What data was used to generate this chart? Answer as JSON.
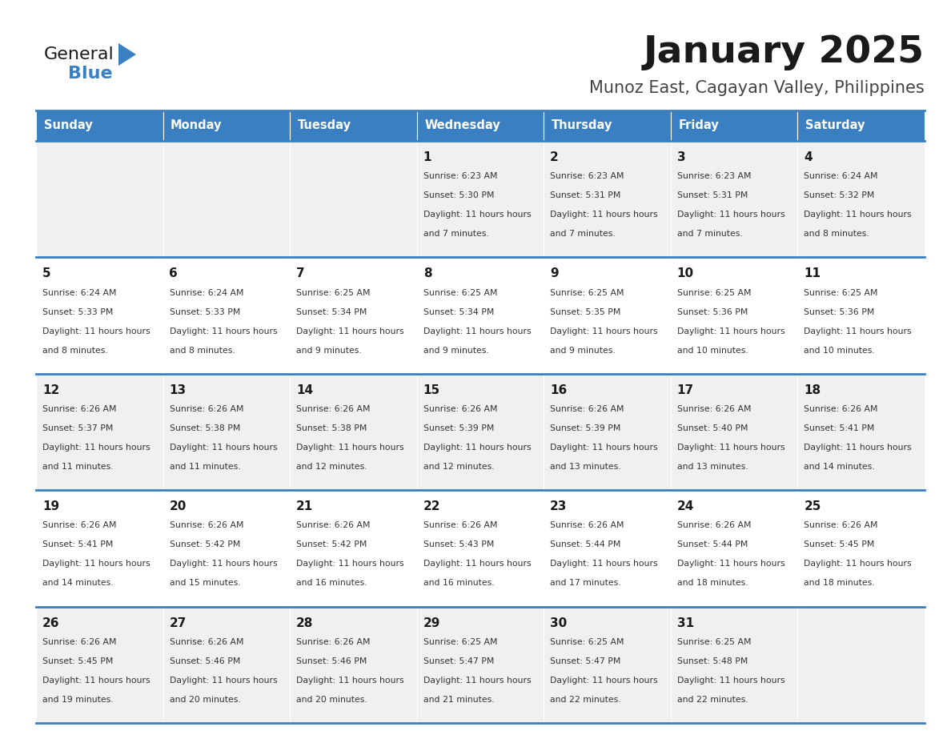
{
  "title": "January 2025",
  "subtitle": "Munoz East, Cagayan Valley, Philippines",
  "header_bg_color": "#3a7fc1",
  "header_text_color": "#ffffff",
  "row_bg_even": "#f0f0f0",
  "row_bg_odd": "#ffffff",
  "border_color": "#3a7fc1",
  "days_of_week": [
    "Sunday",
    "Monday",
    "Tuesday",
    "Wednesday",
    "Thursday",
    "Friday",
    "Saturday"
  ],
  "calendar_data": [
    [
      {
        "day": "",
        "sunrise": "",
        "sunset": "",
        "daylight": ""
      },
      {
        "day": "",
        "sunrise": "",
        "sunset": "",
        "daylight": ""
      },
      {
        "day": "",
        "sunrise": "",
        "sunset": "",
        "daylight": ""
      },
      {
        "day": "1",
        "sunrise": "6:23 AM",
        "sunset": "5:30 PM",
        "daylight": "11 hours and 7 minutes."
      },
      {
        "day": "2",
        "sunrise": "6:23 AM",
        "sunset": "5:31 PM",
        "daylight": "11 hours and 7 minutes."
      },
      {
        "day": "3",
        "sunrise": "6:23 AM",
        "sunset": "5:31 PM",
        "daylight": "11 hours and 7 minutes."
      },
      {
        "day": "4",
        "sunrise": "6:24 AM",
        "sunset": "5:32 PM",
        "daylight": "11 hours and 8 minutes."
      }
    ],
    [
      {
        "day": "5",
        "sunrise": "6:24 AM",
        "sunset": "5:33 PM",
        "daylight": "11 hours and 8 minutes."
      },
      {
        "day": "6",
        "sunrise": "6:24 AM",
        "sunset": "5:33 PM",
        "daylight": "11 hours and 8 minutes."
      },
      {
        "day": "7",
        "sunrise": "6:25 AM",
        "sunset": "5:34 PM",
        "daylight": "11 hours and 9 minutes."
      },
      {
        "day": "8",
        "sunrise": "6:25 AM",
        "sunset": "5:34 PM",
        "daylight": "11 hours and 9 minutes."
      },
      {
        "day": "9",
        "sunrise": "6:25 AM",
        "sunset": "5:35 PM",
        "daylight": "11 hours and 9 minutes."
      },
      {
        "day": "10",
        "sunrise": "6:25 AM",
        "sunset": "5:36 PM",
        "daylight": "11 hours and 10 minutes."
      },
      {
        "day": "11",
        "sunrise": "6:25 AM",
        "sunset": "5:36 PM",
        "daylight": "11 hours and 10 minutes."
      }
    ],
    [
      {
        "day": "12",
        "sunrise": "6:26 AM",
        "sunset": "5:37 PM",
        "daylight": "11 hours and 11 minutes."
      },
      {
        "day": "13",
        "sunrise": "6:26 AM",
        "sunset": "5:38 PM",
        "daylight": "11 hours and 11 minutes."
      },
      {
        "day": "14",
        "sunrise": "6:26 AM",
        "sunset": "5:38 PM",
        "daylight": "11 hours and 12 minutes."
      },
      {
        "day": "15",
        "sunrise": "6:26 AM",
        "sunset": "5:39 PM",
        "daylight": "11 hours and 12 minutes."
      },
      {
        "day": "16",
        "sunrise": "6:26 AM",
        "sunset": "5:39 PM",
        "daylight": "11 hours and 13 minutes."
      },
      {
        "day": "17",
        "sunrise": "6:26 AM",
        "sunset": "5:40 PM",
        "daylight": "11 hours and 13 minutes."
      },
      {
        "day": "18",
        "sunrise": "6:26 AM",
        "sunset": "5:41 PM",
        "daylight": "11 hours and 14 minutes."
      }
    ],
    [
      {
        "day": "19",
        "sunrise": "6:26 AM",
        "sunset": "5:41 PM",
        "daylight": "11 hours and 14 minutes."
      },
      {
        "day": "20",
        "sunrise": "6:26 AM",
        "sunset": "5:42 PM",
        "daylight": "11 hours and 15 minutes."
      },
      {
        "day": "21",
        "sunrise": "6:26 AM",
        "sunset": "5:42 PM",
        "daylight": "11 hours and 16 minutes."
      },
      {
        "day": "22",
        "sunrise": "6:26 AM",
        "sunset": "5:43 PM",
        "daylight": "11 hours and 16 minutes."
      },
      {
        "day": "23",
        "sunrise": "6:26 AM",
        "sunset": "5:44 PM",
        "daylight": "11 hours and 17 minutes."
      },
      {
        "day": "24",
        "sunrise": "6:26 AM",
        "sunset": "5:44 PM",
        "daylight": "11 hours and 18 minutes."
      },
      {
        "day": "25",
        "sunrise": "6:26 AM",
        "sunset": "5:45 PM",
        "daylight": "11 hours and 18 minutes."
      }
    ],
    [
      {
        "day": "26",
        "sunrise": "6:26 AM",
        "sunset": "5:45 PM",
        "daylight": "11 hours and 19 minutes."
      },
      {
        "day": "27",
        "sunrise": "6:26 AM",
        "sunset": "5:46 PM",
        "daylight": "11 hours and 20 minutes."
      },
      {
        "day": "28",
        "sunrise": "6:26 AM",
        "sunset": "5:46 PM",
        "daylight": "11 hours and 20 minutes."
      },
      {
        "day": "29",
        "sunrise": "6:25 AM",
        "sunset": "5:47 PM",
        "daylight": "11 hours and 21 minutes."
      },
      {
        "day": "30",
        "sunrise": "6:25 AM",
        "sunset": "5:47 PM",
        "daylight": "11 hours and 22 minutes."
      },
      {
        "day": "31",
        "sunrise": "6:25 AM",
        "sunset": "5:48 PM",
        "daylight": "11 hours and 22 minutes."
      },
      {
        "day": "",
        "sunrise": "",
        "sunset": "",
        "daylight": ""
      }
    ]
  ],
  "logo_general_color": "#1a1a1a",
  "logo_blue_color": "#3a7fc1",
  "logo_triangle_color": "#3a7fc1"
}
